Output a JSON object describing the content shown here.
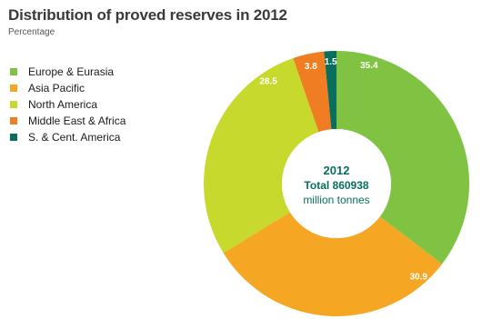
{
  "chart_data": {
    "type": "pie",
    "title": "Distribution of proved reserves in 2012",
    "subtitle": "Percentage",
    "center_text": [
      "2012",
      "Total 860938",
      "million tonnes"
    ],
    "series": [
      {
        "name": "Europe & Eurasia",
        "value": 35.4,
        "label": "35.4",
        "color": "#80c342"
      },
      {
        "name": "Asia Pacific",
        "value": 30.9,
        "label": "30.9",
        "color": "#f5a623"
      },
      {
        "name": "North America",
        "value": 28.5,
        "label": "28.5",
        "color": "#c8d92e"
      },
      {
        "name": "Middle East & Africa",
        "value": 3.8,
        "label": "3.8",
        "color": "#f07d22"
      },
      {
        "name": "S. & Cent. America",
        "value": 1.5,
        "label": "1.5",
        "color": "#0a6e5c"
      }
    ]
  }
}
